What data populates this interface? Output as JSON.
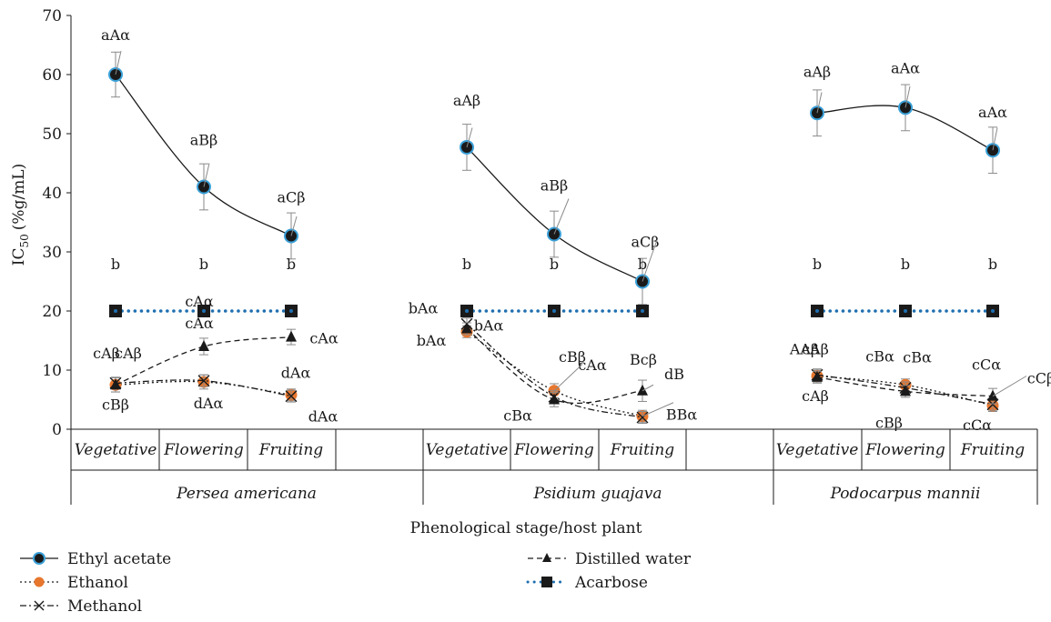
{
  "chart_data": {
    "type": "line",
    "ylabel": "IC50 (%g/mL)",
    "ylabel_main": "IC",
    "ylabel_sub": "50",
    "ylabel_unit": "(%g/mL)",
    "xlabel": "Phenological stage/host plant",
    "ylim": [
      0,
      70
    ],
    "yticks": [
      "0",
      "10",
      "20",
      "30",
      "40",
      "50",
      "60",
      "70"
    ],
    "grid": false,
    "legend_position": "bottom",
    "stages": [
      "Vegetative",
      "Flowering",
      "Fruiting"
    ],
    "hosts": [
      "Persea americana",
      "Psidium guajava",
      "Podocarpus mannii"
    ],
    "series": [
      {
        "name": "Ethyl acetate",
        "color": "#1a1a1a",
        "marker_fill": "#1f6fb0",
        "values": [
          [
            60,
            41,
            32.7
          ],
          [
            47.7,
            33,
            25
          ],
          [
            53.5,
            54.4,
            47.2
          ]
        ],
        "errors": [
          [
            3.8,
            3.9,
            3.9
          ],
          [
            3.9,
            3.9,
            3.9
          ],
          [
            3.9,
            3.9,
            3.9
          ]
        ]
      },
      {
        "name": "Ethanol",
        "color": "#e8772e",
        "values": [
          [
            7.5,
            8,
            5.8
          ],
          [
            16.5,
            6.5,
            2.2
          ],
          [
            9,
            7.5,
            4
          ]
        ],
        "errors": [
          [
            1.2,
            1.2,
            1
          ],
          [
            1,
            1.2,
            1
          ],
          [
            1,
            1,
            1
          ]
        ]
      },
      {
        "name": "Methanol",
        "color": "#1a1a1a",
        "values": [
          [
            7.8,
            8.2,
            5.6
          ],
          [
            17.8,
            5.5,
            2
          ],
          [
            9.2,
            7,
            4.2
          ]
        ],
        "errors": [
          [
            1,
            1,
            1
          ],
          [
            1,
            1,
            1
          ],
          [
            1,
            1,
            1
          ]
        ]
      },
      {
        "name": "Distilled water",
        "color": "#1a1a1a",
        "values": [
          [
            7.5,
            14,
            15.6
          ],
          [
            17,
            5,
            6.5
          ],
          [
            8.8,
            6.4,
            5.6
          ]
        ],
        "errors": [
          [
            1.2,
            1.4,
            1.3
          ],
          [
            1,
            1.2,
            1.8
          ],
          [
            1,
            1,
            1.3
          ]
        ]
      },
      {
        "name": "Acarbose",
        "color": "#1f6fb0",
        "values": [
          [
            20,
            20,
            20
          ],
          [
            20,
            20,
            20
          ],
          [
            20,
            20,
            20
          ]
        ]
      }
    ],
    "annotations": [
      {
        "text": "aAα",
        "host": 0,
        "stage": 0,
        "y": 60
      },
      {
        "text": "aBβ",
        "host": 0,
        "stage": 1,
        "y": 41
      },
      {
        "text": "aCβ",
        "host": 0,
        "stage": 2,
        "y": 32.7
      },
      {
        "text": "b",
        "host": 0,
        "stage": 0,
        "y": 20
      },
      {
        "text": "b",
        "host": 0,
        "stage": 1,
        "y": 20
      },
      {
        "text": "b",
        "host": 0,
        "stage": 2,
        "y": 20
      },
      {
        "text": "cAβ",
        "host": 0,
        "stage": 0,
        "y": 8
      },
      {
        "text": "cAβ",
        "host": 0,
        "stage": 0,
        "y": 8
      },
      {
        "text": "cBβ",
        "host": 0,
        "stage": 0,
        "y": 7.5
      },
      {
        "text": "cAα",
        "host": 0,
        "stage": 1,
        "y": 14
      },
      {
        "text": "cAα",
        "host": 0,
        "stage": 1,
        "y": 14
      },
      {
        "text": "dAα",
        "host": 0,
        "stage": 1,
        "y": 8
      },
      {
        "text": "cAα",
        "host": 0,
        "stage": 2,
        "y": 15.6
      },
      {
        "text": "dAα",
        "host": 0,
        "stage": 2,
        "y": 5.8
      },
      {
        "text": "dAα",
        "host": 0,
        "stage": 2,
        "y": 5.8
      },
      {
        "text": "aAβ",
        "host": 1,
        "stage": 0,
        "y": 47.7
      },
      {
        "text": "aBβ",
        "host": 1,
        "stage": 1,
        "y": 33
      },
      {
        "text": "aCβ",
        "host": 1,
        "stage": 2,
        "y": 25
      },
      {
        "text": "b",
        "host": 1,
        "stage": 0,
        "y": 20
      },
      {
        "text": "b",
        "host": 1,
        "stage": 1,
        "y": 20
      },
      {
        "text": "b",
        "host": 1,
        "stage": 2,
        "y": 20
      },
      {
        "text": "bAα",
        "host": 1,
        "stage": 0,
        "y": 17.8
      },
      {
        "text": "bAα",
        "host": 1,
        "stage": 0,
        "y": 17
      },
      {
        "text": "bAα",
        "host": 1,
        "stage": 0,
        "y": 16.5
      },
      {
        "text": "cBβ",
        "host": 1,
        "stage": 1,
        "y": 6.5
      },
      {
        "text": "cAα",
        "host": 1,
        "stage": 1,
        "y": 6.5
      },
      {
        "text": "cBα",
        "host": 1,
        "stage": 1,
        "y": 5
      },
      {
        "text": "Bcβ",
        "host": 1,
        "stage": 2,
        "y": 6.5
      },
      {
        "text": "dB",
        "host": 1,
        "stage": 2,
        "y": 6.5
      },
      {
        "text": "BBα",
        "host": 1,
        "stage": 2,
        "y": 2.2
      },
      {
        "text": "aAβ",
        "host": 2,
        "stage": 0,
        "y": 53.5
      },
      {
        "text": "aAα",
        "host": 2,
        "stage": 1,
        "y": 54.4
      },
      {
        "text": "aAα",
        "host": 2,
        "stage": 2,
        "y": 47.2
      },
      {
        "text": "b",
        "host": 2,
        "stage": 0,
        "y": 20
      },
      {
        "text": "b",
        "host": 2,
        "stage": 1,
        "y": 20
      },
      {
        "text": "b",
        "host": 2,
        "stage": 2,
        "y": 20
      },
      {
        "text": "AAβ",
        "host": 2,
        "stage": 0,
        "y": 9
      },
      {
        "text": "cAβ",
        "host": 2,
        "stage": 0,
        "y": 9
      },
      {
        "text": "cAβ",
        "host": 2,
        "stage": 0,
        "y": 8.8
      },
      {
        "text": "cBα",
        "host": 2,
        "stage": 1,
        "y": 7.5
      },
      {
        "text": "cBα",
        "host": 2,
        "stage": 1,
        "y": 7.5
      },
      {
        "text": "cBβ",
        "host": 2,
        "stage": 1,
        "y": 6.4
      },
      {
        "text": "cCα",
        "host": 2,
        "stage": 2,
        "y": 5.6
      },
      {
        "text": "cCβ",
        "host": 2,
        "stage": 2,
        "y": 5.6
      },
      {
        "text": "cCα",
        "host": 2,
        "stage": 2,
        "y": 4
      }
    ]
  }
}
